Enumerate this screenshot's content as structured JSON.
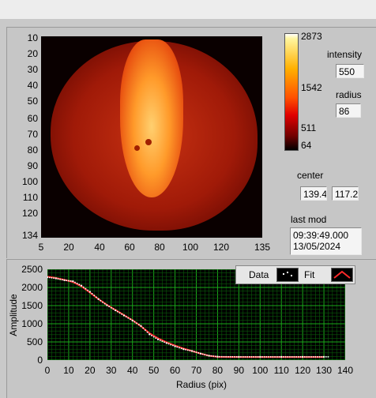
{
  "image": {
    "y_ticks": [
      "10",
      "20",
      "30",
      "40",
      "50",
      "60",
      "70",
      "80",
      "90",
      "100",
      "110",
      "120",
      "134"
    ],
    "x_ticks": [
      "5",
      "20",
      "40",
      "60",
      "80",
      "100",
      "120",
      "135"
    ]
  },
  "colorbar": {
    "labels": [
      "2873",
      "1542",
      "511",
      "64"
    ]
  },
  "intensity": {
    "label": "intensity",
    "value": "550"
  },
  "radius": {
    "label": "radius",
    "value": "86"
  },
  "center": {
    "label": "center",
    "x": "139.4",
    "y": "117.2"
  },
  "last_mod": {
    "label": "last mod",
    "time": "09:39:49.000",
    "date": "13/05/2024"
  },
  "legend": {
    "data_label": "Data",
    "fit_label": "Fit"
  },
  "colors": {
    "data": "#ffffff",
    "fit": "#ff2a2a",
    "grid": "#00a000",
    "plot_bg": "#000000"
  },
  "chart_data": {
    "type": "line",
    "xlabel": "Radius (pix)",
    "ylabel": "Amplitude",
    "xlim": [
      0,
      140
    ],
    "ylim": [
      0,
      2500
    ],
    "x_ticks": [
      "0",
      "10",
      "20",
      "30",
      "40",
      "50",
      "60",
      "70",
      "80",
      "90",
      "100",
      "110",
      "120",
      "130",
      "140"
    ],
    "y_ticks": [
      "0",
      "500",
      "1000",
      "1500",
      "2000",
      "2500"
    ],
    "series": [
      {
        "name": "Data",
        "style": "points",
        "x": [
          0,
          4,
          8,
          12,
          16,
          20,
          24,
          28,
          32,
          36,
          40,
          44,
          48,
          52,
          56,
          60,
          64,
          68,
          72,
          76,
          80,
          90,
          100,
          110,
          120,
          130
        ],
        "y": [
          2280,
          2250,
          2200,
          2170,
          2050,
          1880,
          1680,
          1510,
          1370,
          1230,
          1090,
          940,
          710,
          570,
          470,
          380,
          300,
          250,
          180,
          120,
          95,
          90,
          90,
          90,
          90,
          90
        ]
      },
      {
        "name": "Fit",
        "style": "line",
        "x": [
          0,
          4,
          8,
          12,
          16,
          20,
          24,
          28,
          32,
          36,
          40,
          44,
          48,
          52,
          56,
          60,
          64,
          68,
          72,
          76,
          80,
          90,
          100,
          110,
          120,
          130
        ],
        "y": [
          2300,
          2260,
          2210,
          2150,
          2030,
          1860,
          1680,
          1520,
          1380,
          1240,
          1100,
          930,
          740,
          600,
          490,
          400,
          320,
          250,
          180,
          120,
          90,
          85,
          85,
          85,
          85,
          85
        ]
      }
    ]
  }
}
